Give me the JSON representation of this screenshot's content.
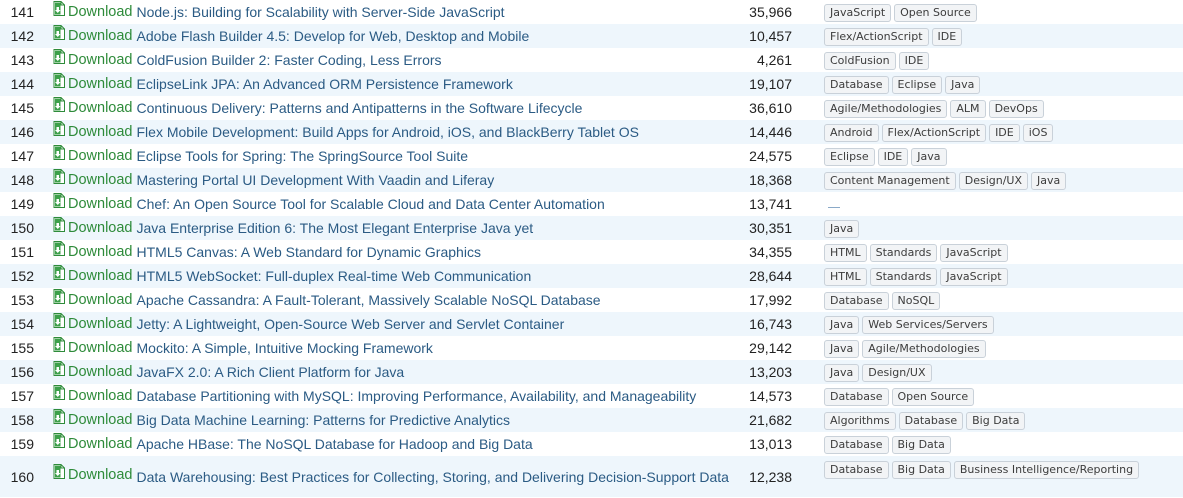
{
  "download_label": "Download",
  "icon": "download-file-icon",
  "colors": {
    "download": "#2e8b3a",
    "title": "#2b5b84",
    "even_row": "#eef6fc"
  },
  "rows": [
    {
      "num": "141",
      "title": "Node.js: Building for Scalability with Server-Side JavaScript",
      "views": "35,966",
      "tags": [
        "JavaScript",
        "Open Source"
      ]
    },
    {
      "num": "142",
      "title": "Adobe Flash Builder 4.5: Develop for Web, Desktop and Mobile",
      "views": "10,457",
      "tags": [
        "Flex/ActionScript",
        "IDE"
      ]
    },
    {
      "num": "143",
      "title": "ColdFusion Builder 2: Faster Coding, Less Errors",
      "views": "4,261",
      "tags": [
        "ColdFusion",
        "IDE"
      ]
    },
    {
      "num": "144",
      "title": "EclipseLink JPA: An Advanced ORM Persistence Framework",
      "views": "19,107",
      "tags": [
        "Database",
        "Eclipse",
        "Java"
      ]
    },
    {
      "num": "145",
      "title": "Continuous Delivery: Patterns and Antipatterns in the Software Lifecycle",
      "views": "36,610",
      "tags": [
        "Agile/Methodologies",
        "ALM",
        "DevOps"
      ]
    },
    {
      "num": "146",
      "title": "Flex Mobile Development: Build Apps for Android, iOS, and BlackBerry Tablet OS",
      "views": "14,446",
      "tags": [
        "Android",
        "Flex/ActionScript",
        "IDE",
        "iOS"
      ]
    },
    {
      "num": "147",
      "title": "Eclipse Tools for Spring: The SpringSource Tool Suite",
      "views": "24,575",
      "tags": [
        "Eclipse",
        "IDE",
        "Java"
      ]
    },
    {
      "num": "148",
      "title": "Mastering Portal UI Development With Vaadin and Liferay",
      "views": "18,368",
      "tags": [
        "Content Management",
        "Design/UX",
        "Java"
      ]
    },
    {
      "num": "149",
      "title": "Chef: An Open Source Tool for Scalable Cloud and Data Center Automation",
      "views": "13,741",
      "tags": []
    },
    {
      "num": "150",
      "title": "Java Enterprise Edition 6: The Most Elegant Enterprise Java yet",
      "views": "30,351",
      "tags": [
        "Java"
      ]
    },
    {
      "num": "151",
      "title": "HTML5 Canvas: A Web Standard for Dynamic Graphics",
      "views": "34,355",
      "tags": [
        "HTML",
        "Standards",
        "JavaScript"
      ]
    },
    {
      "num": "152",
      "title": "HTML5 WebSocket: Full-duplex Real-time Web Communication",
      "views": "28,644",
      "tags": [
        "HTML",
        "Standards",
        "JavaScript"
      ]
    },
    {
      "num": "153",
      "title": "Apache Cassandra: A Fault-Tolerant, Massively Scalable NoSQL Database",
      "views": "17,992",
      "tags": [
        "Database",
        "NoSQL"
      ]
    },
    {
      "num": "154",
      "title": "Jetty: A Lightweight, Open-Source Web Server and Servlet Container",
      "views": "16,743",
      "tags": [
        "Java",
        "Web Services/Servers"
      ]
    },
    {
      "num": "155",
      "title": "Mockito: A Simple, Intuitive Mocking Framework",
      "views": "29,142",
      "tags": [
        "Java",
        "Agile/Methodologies"
      ]
    },
    {
      "num": "156",
      "title": "JavaFX 2.0: A Rich Client Platform for Java",
      "views": "13,203",
      "tags": [
        "Java",
        "Design/UX"
      ]
    },
    {
      "num": "157",
      "title": "Database Partitioning with MySQL: Improving Performance, Availability, and Manageability",
      "views": "14,573",
      "tags": [
        "Database",
        "Open Source"
      ]
    },
    {
      "num": "158",
      "title": "Big Data Machine Learning: Patterns for Predictive Analytics",
      "views": "21,682",
      "tags": [
        "Algorithms",
        "Database",
        "Big Data"
      ]
    },
    {
      "num": "159",
      "title": "Apache HBase: The NoSQL Database for Hadoop and Big Data",
      "views": "13,013",
      "tags": [
        "Database",
        "Big Data"
      ]
    },
    {
      "num": "160",
      "title": "Data Warehousing: Best Practices for Collecting, Storing, and Delivering Decision-Support Data",
      "views": "12,238",
      "tags": [
        "Database",
        "Big Data",
        "Business Intelligence/Reporting"
      ]
    }
  ]
}
